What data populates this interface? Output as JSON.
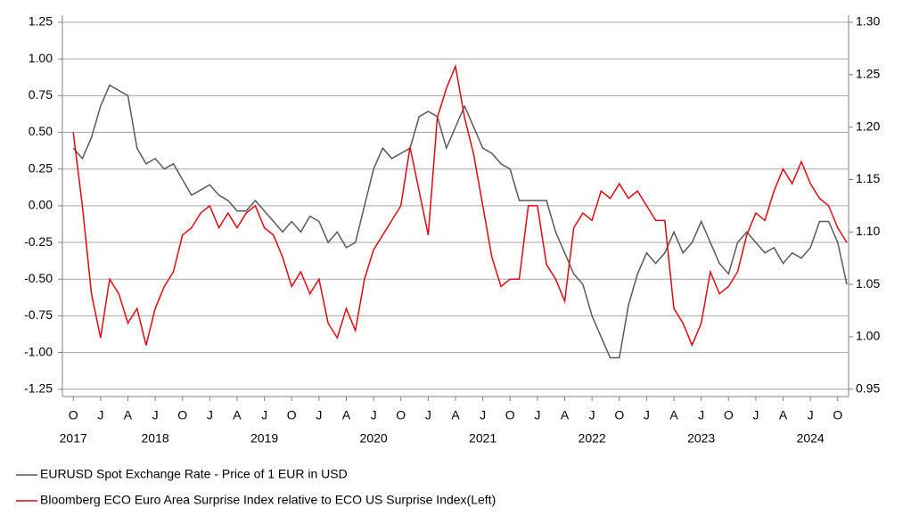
{
  "chart_data": {
    "type": "line",
    "x": [
      "2017-10",
      "2017-11",
      "2017-12",
      "2018-01",
      "2018-02",
      "2018-03",
      "2018-04",
      "2018-05",
      "2018-06",
      "2018-07",
      "2018-08",
      "2018-09",
      "2018-10",
      "2018-11",
      "2018-12",
      "2019-01",
      "2019-02",
      "2019-03",
      "2019-04",
      "2019-05",
      "2019-06",
      "2019-07",
      "2019-08",
      "2019-09",
      "2019-10",
      "2019-11",
      "2019-12",
      "2020-01",
      "2020-02",
      "2020-03",
      "2020-04",
      "2020-05",
      "2020-06",
      "2020-07",
      "2020-08",
      "2020-09",
      "2020-10",
      "2020-11",
      "2020-12",
      "2021-01",
      "2021-02",
      "2021-03",
      "2021-04",
      "2021-05",
      "2021-06",
      "2021-07",
      "2021-08",
      "2021-09",
      "2021-10",
      "2021-11",
      "2021-12",
      "2022-01",
      "2022-02",
      "2022-03",
      "2022-04",
      "2022-05",
      "2022-06",
      "2022-07",
      "2022-08",
      "2022-09",
      "2022-10",
      "2022-11",
      "2022-12",
      "2023-01",
      "2023-02",
      "2023-03",
      "2023-04",
      "2023-05",
      "2023-06",
      "2023-07",
      "2023-08",
      "2023-09",
      "2023-10",
      "2023-11",
      "2023-12",
      "2024-01",
      "2024-02",
      "2024-03",
      "2024-04",
      "2024-05",
      "2024-06",
      "2024-07",
      "2024-08",
      "2024-09",
      "2024-10",
      "2024-11"
    ],
    "series": [
      {
        "name": "EURUSD Spot Exchange Rate - Price of 1 EUR in USD",
        "color": "#595959",
        "axis": "y2",
        "values": [
          1.18,
          1.17,
          1.19,
          1.22,
          1.24,
          1.235,
          1.23,
          1.18,
          1.165,
          1.17,
          1.16,
          1.165,
          1.15,
          1.135,
          1.14,
          1.145,
          1.135,
          1.13,
          1.12,
          1.12,
          1.13,
          1.12,
          1.11,
          1.1,
          1.11,
          1.1,
          1.115,
          1.11,
          1.09,
          1.1,
          1.085,
          1.09,
          1.125,
          1.16,
          1.18,
          1.17,
          1.175,
          1.18,
          1.21,
          1.215,
          1.21,
          1.18,
          1.2,
          1.22,
          1.2,
          1.18,
          1.175,
          1.165,
          1.16,
          1.13,
          1.13,
          1.13,
          1.13,
          1.1,
          1.08,
          1.06,
          1.05,
          1.02,
          1.0,
          0.98,
          0.98,
          1.03,
          1.06,
          1.08,
          1.07,
          1.08,
          1.1,
          1.08,
          1.09,
          1.11,
          1.09,
          1.07,
          1.06,
          1.09,
          1.1,
          1.09,
          1.08,
          1.085,
          1.07,
          1.08,
          1.075,
          1.085,
          1.11,
          1.11,
          1.09,
          1.05
        ]
      },
      {
        "name": "Bloomberg ECO Euro Area Surprise Index relative to ECO US Surprise Index(Left)",
        "color": "#e30613",
        "values": [
          0.5,
          0.0,
          -0.6,
          -0.9,
          -0.5,
          -0.6,
          -0.8,
          -0.7,
          -0.95,
          -0.7,
          -0.55,
          -0.45,
          -0.2,
          -0.15,
          -0.05,
          0.0,
          -0.15,
          -0.05,
          -0.15,
          -0.05,
          0.0,
          -0.15,
          -0.2,
          -0.35,
          -0.55,
          -0.45,
          -0.6,
          -0.5,
          -0.8,
          -0.9,
          -0.7,
          -0.85,
          -0.5,
          -0.3,
          -0.2,
          -0.1,
          0.0,
          0.4,
          0.1,
          -0.2,
          0.6,
          0.8,
          0.95,
          0.6,
          0.35,
          0.0,
          -0.35,
          -0.55,
          -0.5,
          -0.5,
          0.0,
          0.0,
          -0.4,
          -0.5,
          -0.65,
          -0.15,
          -0.05,
          -0.1,
          0.1,
          0.05,
          0.15,
          0.05,
          0.1,
          0.0,
          -0.1,
          -0.1,
          -0.7,
          -0.8,
          -0.95,
          -0.8,
          -0.45,
          -0.6,
          -0.55,
          -0.45,
          -0.2,
          -0.05,
          -0.1,
          0.1,
          0.25,
          0.15,
          0.3,
          0.15,
          0.05,
          0.0,
          -0.15,
          -0.25
        ]
      }
    ],
    "xlim": [
      "2017-09",
      "2024-11"
    ],
    "xticks": [
      {
        "value": "2017-10",
        "label": "O"
      },
      {
        "value": "2018-01",
        "label": "J"
      },
      {
        "value": "2018-04",
        "label": "A"
      },
      {
        "value": "2018-07",
        "label": "J"
      },
      {
        "value": "2018-10",
        "label": "O"
      },
      {
        "value": "2019-01",
        "label": "J"
      },
      {
        "value": "2019-04",
        "label": "A"
      },
      {
        "value": "2019-07",
        "label": "J"
      },
      {
        "value": "2019-10",
        "label": "O"
      },
      {
        "value": "2020-01",
        "label": "J"
      },
      {
        "value": "2020-04",
        "label": "A"
      },
      {
        "value": "2020-07",
        "label": "J"
      },
      {
        "value": "2020-10",
        "label": "O"
      },
      {
        "value": "2021-01",
        "label": "J"
      },
      {
        "value": "2021-04",
        "label": "A"
      },
      {
        "value": "2021-07",
        "label": "J"
      },
      {
        "value": "2021-10",
        "label": "O"
      },
      {
        "value": "2022-01",
        "label": "J"
      },
      {
        "value": "2022-04",
        "label": "A"
      },
      {
        "value": "2022-07",
        "label": "J"
      },
      {
        "value": "2022-10",
        "label": "O"
      },
      {
        "value": "2023-01",
        "label": "J"
      },
      {
        "value": "2023-04",
        "label": "A"
      },
      {
        "value": "2023-07",
        "label": "J"
      },
      {
        "value": "2023-10",
        "label": "O"
      },
      {
        "value": "2024-01",
        "label": "J"
      },
      {
        "value": "2024-04",
        "label": "A"
      },
      {
        "value": "2024-07",
        "label": "J"
      },
      {
        "value": "2024-10",
        "label": "O"
      }
    ],
    "year_labels": [
      {
        "value": "2017-10",
        "label": "2017"
      },
      {
        "value": "2018-07",
        "label": "2018"
      },
      {
        "value": "2019-07",
        "label": "2019"
      },
      {
        "value": "2020-07",
        "label": "2020"
      },
      {
        "value": "2021-07",
        "label": "2021"
      },
      {
        "value": "2022-07",
        "label": "2022"
      },
      {
        "value": "2023-07",
        "label": "2023"
      },
      {
        "value": "2024-07",
        "label": "2024"
      }
    ],
    "ylim": [
      -1.3,
      1.25
    ],
    "yticks": [
      {
        "value": 1.25,
        "label": "1.25"
      },
      {
        "value": 1.0,
        "label": "1.00"
      },
      {
        "value": 0.75,
        "label": "0.75"
      },
      {
        "value": 0.5,
        "label": "0.50"
      },
      {
        "value": 0.25,
        "label": "0.25"
      },
      {
        "value": 0.0,
        "label": "0.00"
      },
      {
        "value": -0.25,
        "label": "-0.25"
      },
      {
        "value": -0.5,
        "label": "-0.50"
      },
      {
        "value": -0.75,
        "label": "-0.75"
      },
      {
        "value": -1.0,
        "label": "-1.00"
      },
      {
        "value": -1.25,
        "label": "-1.25"
      }
    ],
    "y2lim": [
      0.943,
      1.3
    ],
    "y2ticks": [
      {
        "value": 1.3,
        "label": "1.30"
      },
      {
        "value": 1.25,
        "label": "1.25"
      },
      {
        "value": 1.2,
        "label": "1.20"
      },
      {
        "value": 1.15,
        "label": "1.15"
      },
      {
        "value": 1.1,
        "label": "1.10"
      },
      {
        "value": 1.05,
        "label": "1.05"
      },
      {
        "value": 1.0,
        "label": "1.00"
      },
      {
        "value": 0.95,
        "label": "0.95"
      }
    ],
    "grid": true
  }
}
